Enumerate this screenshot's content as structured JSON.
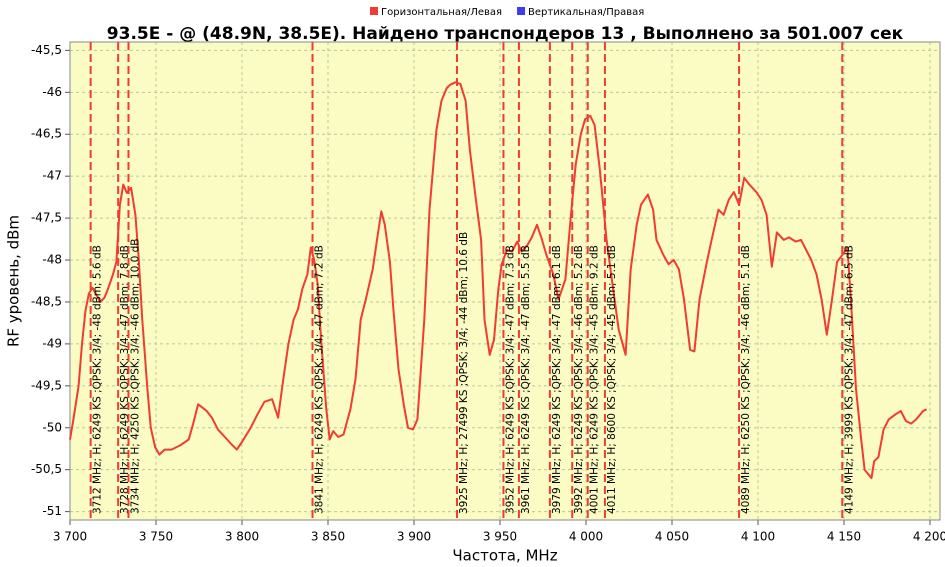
{
  "chart_data": {
    "type": "line",
    "title": "93.5E -  @  (48.9N, 38.5E). Найдено транспондеров 13 , Выполнено за 501.007 сек",
    "xlabel": "Частота, MHz",
    "ylabel": "RF уровень, dBm",
    "legend": "top",
    "grid": true,
    "xlim": [
      3700,
      4200
    ],
    "ylim": [
      -51.1,
      -45.4
    ],
    "xticks": [
      {
        "value": 3700,
        "label": "3 700"
      },
      {
        "value": 3750,
        "label": "3 750"
      },
      {
        "value": 3800,
        "label": "3 800"
      },
      {
        "value": 3850,
        "label": "3 850"
      },
      {
        "value": 3900,
        "label": "3 900"
      },
      {
        "value": 3950,
        "label": "3 950"
      },
      {
        "value": 4000,
        "label": "4 000"
      },
      {
        "value": 4050,
        "label": "4 050"
      },
      {
        "value": 4100,
        "label": "4 100"
      },
      {
        "value": 4150,
        "label": "4 150"
      },
      {
        "value": 4200,
        "label": "4 200"
      }
    ],
    "yticks": [
      {
        "value": -45.5,
        "label": "-45,5"
      },
      -46,
      {
        "value": -46.5,
        "label": "-46,5"
      },
      -47,
      {
        "value": -47.5,
        "label": "-47,5"
      },
      -48,
      {
        "value": -48.5,
        "label": "-48,5"
      },
      -49,
      {
        "value": -49.5,
        "label": "-49,5"
      },
      -50,
      {
        "value": -50.5,
        "label": "-50,5"
      },
      -51
    ],
    "x": [
      3700,
      3702,
      3705,
      3707,
      3709,
      3711,
      3713,
      3715,
      3717.5,
      3720,
      3722,
      3725,
      3727,
      3729,
      3731,
      3733,
      3735.5,
      3738,
      3740,
      3742,
      3745,
      3747,
      3749.5,
      3752,
      3755,
      3759,
      3764,
      3769,
      3771.5,
      3774.5,
      3777,
      3779.5,
      3782.5,
      3786,
      3790,
      3794,
      3797,
      3800,
      3804.5,
      3809,
      3813,
      3817.5,
      3821,
      3824,
      3827,
      3830,
      3832.5,
      3835,
      3838,
      3840,
      3842,
      3844,
      3846,
      3849,
      3851,
      3853,
      3856,
      3859,
      3863,
      3866,
      3869,
      3872,
      3876,
      3878.5,
      3881,
      3883,
      3886,
      3888,
      3891,
      3894,
      3896.5,
      3899.5,
      3902,
      3906,
      3909,
      3913,
      3916,
      3919,
      3921,
      3924,
      3927,
      3930,
      3932.5,
      3936,
      3939,
      3941,
      3944,
      3946.5,
      3949,
      3951,
      3954,
      3957,
      3960,
      3962.5,
      3966,
      3968.5,
      3971.5,
      3974,
      3977,
      3981,
      3984,
      3988,
      3991,
      3994,
      3997,
      3999.5,
      4002.5,
      4005,
      4008,
      4012,
      4015,
      4019,
      4023,
      4026,
      4029.5,
      4032,
      4036,
      4039,
      4041,
      4045,
      4048,
      4051,
      4054,
      4057,
      4060.5,
      4063,
      4066,
      4070,
      4073,
      4077,
      4080,
      4083,
      4086,
      4089,
      4092,
      4095,
      4099,
      4102,
      4105,
      4108,
      4111,
      4115,
      4118,
      4122,
      4125,
      4128,
      4131,
      4134,
      4137,
      4140,
      4143,
      4146,
      4149,
      4152,
      4154,
      4157,
      4160,
      4162,
      4166,
      4167.5,
      4170,
      4173,
      4176,
      4180,
      4183,
      4186,
      4189,
      4192,
      4196,
      4198
    ],
    "series": [
      {
        "name": "Горизонтальная/Левая",
        "color": "#f03c32",
        "values": [
          -50.14,
          -49.9,
          -49.5,
          -49.0,
          -48.6,
          -48.4,
          -48.33,
          -48.4,
          -48.5,
          -48.45,
          -48.35,
          -48.17,
          -48.02,
          -47.34,
          -47.1,
          -47.2,
          -47.14,
          -47.46,
          -48.0,
          -48.7,
          -49.54,
          -50.0,
          -50.23,
          -50.32,
          -50.26,
          -50.26,
          -50.21,
          -50.14,
          -49.96,
          -49.72,
          -49.76,
          -49.8,
          -49.88,
          -50.02,
          -50.11,
          -50.2,
          -50.26,
          -50.17,
          -50.02,
          -49.84,
          -49.69,
          -49.66,
          -49.88,
          -49.42,
          -49.0,
          -48.71,
          -48.59,
          -48.35,
          -48.17,
          -47.85,
          -48.0,
          -48.29,
          -48.95,
          -49.78,
          -50.14,
          -50.04,
          -50.11,
          -50.08,
          -49.78,
          -49.42,
          -48.71,
          -48.47,
          -48.11,
          -47.76,
          -47.42,
          -47.58,
          -48.02,
          -48.59,
          -49.3,
          -49.72,
          -50.0,
          -50.02,
          -49.9,
          -48.71,
          -47.4,
          -46.45,
          -46.1,
          -45.95,
          -45.91,
          -45.88,
          -45.9,
          -46.1,
          -46.69,
          -47.28,
          -47.76,
          -48.71,
          -49.13,
          -48.95,
          -48.35,
          -48.05,
          -47.88,
          -47.9,
          -47.78,
          -47.9,
          -47.82,
          -47.73,
          -47.58,
          -47.73,
          -47.94,
          -48.17,
          -48.47,
          -48.23,
          -47.52,
          -46.86,
          -46.5,
          -46.32,
          -46.28,
          -46.39,
          -46.92,
          -47.76,
          -48.23,
          -48.83,
          -49.13,
          -48.11,
          -47.58,
          -47.34,
          -47.22,
          -47.4,
          -47.76,
          -47.94,
          -48.05,
          -48.0,
          -48.11,
          -48.47,
          -49.07,
          -49.09,
          -48.47,
          -48.05,
          -47.76,
          -47.4,
          -47.46,
          -47.28,
          -47.19,
          -47.34,
          -47.02,
          -47.1,
          -47.19,
          -47.28,
          -47.46,
          -48.08,
          -47.67,
          -47.76,
          -47.73,
          -47.78,
          -47.76,
          -47.88,
          -48.0,
          -48.17,
          -48.47,
          -48.89,
          -48.47,
          -48.02,
          -47.94,
          -47.85,
          -48.47,
          -49.54,
          -50.14,
          -50.5,
          -50.6,
          -50.4,
          -50.35,
          -50.02,
          -49.9,
          -49.84,
          -49.8,
          -49.92,
          -49.95,
          -49.9,
          -49.8,
          -49.78
        ]
      },
      {
        "name": "Вертикальная/Правая",
        "color": "#3c3cf0",
        "values": [
          null,
          null,
          null,
          null,
          null,
          null,
          null,
          null,
          null,
          null,
          null,
          null,
          null,
          null,
          null,
          null,
          null,
          null,
          null,
          null,
          null,
          null,
          null,
          null,
          null,
          null,
          null,
          null,
          null,
          null,
          null,
          null,
          null,
          null,
          null,
          null,
          null,
          null,
          null,
          null,
          null,
          null,
          null,
          null,
          null,
          null,
          null,
          null,
          null,
          null,
          null,
          null,
          null,
          null,
          null,
          null,
          null,
          null,
          null,
          null,
          null,
          null,
          null,
          null,
          null,
          null,
          null,
          null,
          null,
          null,
          null,
          null,
          null,
          null,
          null,
          null,
          null,
          null,
          null,
          null,
          null,
          null,
          null,
          null,
          null,
          null,
          null,
          null,
          null,
          null,
          null,
          null,
          null,
          null,
          null,
          null,
          null,
          null,
          null,
          null,
          null,
          null,
          null,
          null,
          null,
          null,
          null,
          null,
          null,
          null,
          null,
          null,
          null,
          null,
          null,
          null,
          null,
          null,
          null,
          null,
          null,
          null,
          null,
          null,
          null,
          null,
          null,
          null,
          null,
          null,
          null,
          null,
          null,
          null,
          null,
          null,
          null,
          null,
          null,
          null,
          null,
          null,
          null,
          null,
          null,
          null,
          null,
          null,
          null,
          null,
          null,
          null,
          null,
          null,
          null,
          null,
          null,
          null,
          null,
          null,
          null,
          null,
          null,
          null,
          null,
          null,
          null,
          null,
          null,
          null
        ]
      }
    ],
    "marker_color": "#f03c32",
    "markers": [
      {
        "x": 3712,
        "label": "3712 MHz; H; 6249 KS ;QPSK; 3/4; -48 dBm; 5.6 dB"
      },
      {
        "x": 3728,
        "label": "3728 MHz; H; 6249 KS ;QPSK; 3/4; -47 dBm; 7.8 dB"
      },
      {
        "x": 3734,
        "label": "3734 MHz; H; 4250 KS ;QPSK; 3/4; -46 dBm; 10.0 dB"
      },
      {
        "x": 3841,
        "label": "3841 MHz; H; 6249 KS ;QPSK; 3/4; -47 dBm; 7.2 dB"
      },
      {
        "x": 3925,
        "label": "3925 MHz; H; 27499 KS ;QPSK; 3/4; -44 dBm; 10.6 dB"
      },
      {
        "x": 3952,
        "label": "3952 MHz; H; 6249 KS ;QPSK; 3/4; -47 dBm; 7.3 dB"
      },
      {
        "x": 3961,
        "label": "3961 MHz; H; 6249 KS ;QPSK; 3/4; -47 dBm; 5.5 dB"
      },
      {
        "x": 3979,
        "label": "3979 MHz; H; 6249 KS ;QPSK; 3/4; -47 dBm; 6.1 dB"
      },
      {
        "x": 3992,
        "label": "3992 MHz; H; 6249 KS ;QPSK; 3/4; -46 dBm; 5.2 dB"
      },
      {
        "x": 4001,
        "label": "4001 MHz; H; 6249 KS ;QPSK; 3/4; -45 dBm; 9.2 dB"
      },
      {
        "x": 4011,
        "label": "4011 MHz; H; 8600 KS ;QPSK; 3/4; -45 dBm; 5.1 dB"
      },
      {
        "x": 4089,
        "label": "4089 MHz; H; 6250 KS ;QPSK; 3/4; -46 dBm; 5.1 dB"
      },
      {
        "x": 4149,
        "label": "4149 MHz; H; 3999 KS ;QPSK; 3/4; -47 dBm; 6.5 dB"
      }
    ]
  }
}
